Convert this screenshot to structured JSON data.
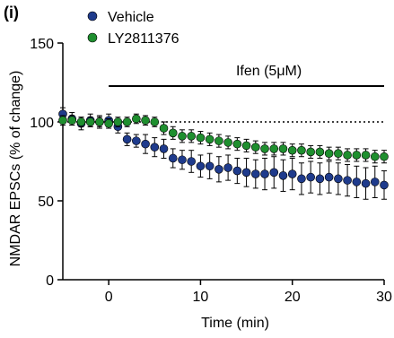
{
  "chart_data": {
    "type": "scatter",
    "panel_label": "(i)",
    "xlabel": "Time (min)",
    "ylabel": "NMDAR EPSCs (% of change)",
    "xlim": [
      -5,
      30
    ],
    "ylim": [
      0,
      150
    ],
    "xticks": [
      0,
      10,
      20,
      30
    ],
    "yticks": [
      0,
      50,
      100,
      150
    ],
    "legend_position": "top-left",
    "grid": false,
    "reference_line": {
      "y": 100,
      "style": "dotted"
    },
    "treatment_bar": {
      "label": "Ifen (5μM)",
      "x_start": 0,
      "x_end": 30
    },
    "x": [
      -5,
      -4,
      -3,
      -2,
      -1,
      0,
      1,
      2,
      3,
      4,
      5,
      6,
      7,
      8,
      9,
      10,
      11,
      12,
      13,
      14,
      15,
      16,
      17,
      18,
      19,
      20,
      21,
      22,
      23,
      24,
      25,
      26,
      27,
      28,
      29,
      30
    ],
    "series": [
      {
        "name": "Vehicle",
        "color": "#1f3b8c",
        "values": [
          105,
          102,
          99,
          101,
          100,
          101,
          97,
          89,
          88,
          86,
          84,
          83,
          77,
          76,
          75,
          72,
          72,
          70,
          71,
          69,
          68,
          67,
          67,
          68,
          66,
          67,
          64,
          65,
          64,
          65,
          64,
          63,
          62,
          61,
          62,
          60
        ],
        "errors": [
          4,
          4,
          4,
          4,
          4,
          4,
          4,
          4,
          4,
          6,
          6,
          6,
          6,
          6,
          7,
          7,
          8,
          8,
          8,
          8,
          9,
          9,
          10,
          10,
          10,
          10,
          10,
          10,
          10,
          10,
          10,
          10,
          10,
          10,
          10,
          9
        ]
      },
      {
        "name": "LY2811376",
        "color": "#1f8f2f",
        "values": [
          101,
          101,
          100,
          100,
          100,
          99,
          100,
          100,
          102,
          101,
          100,
          96,
          93,
          91,
          91,
          90,
          89,
          88,
          87,
          86,
          85,
          84,
          83,
          83,
          83,
          82,
          82,
          81,
          81,
          80,
          80,
          79,
          79,
          79,
          78,
          78
        ],
        "errors": [
          3,
          3,
          3,
          3,
          3,
          3,
          3,
          3,
          3,
          3,
          3,
          4,
          4,
          4,
          4,
          4,
          4,
          4,
          4,
          4,
          4,
          4,
          4,
          4,
          4,
          4,
          4,
          4,
          4,
          4,
          4,
          4,
          4,
          4,
          4,
          4
        ]
      }
    ]
  }
}
